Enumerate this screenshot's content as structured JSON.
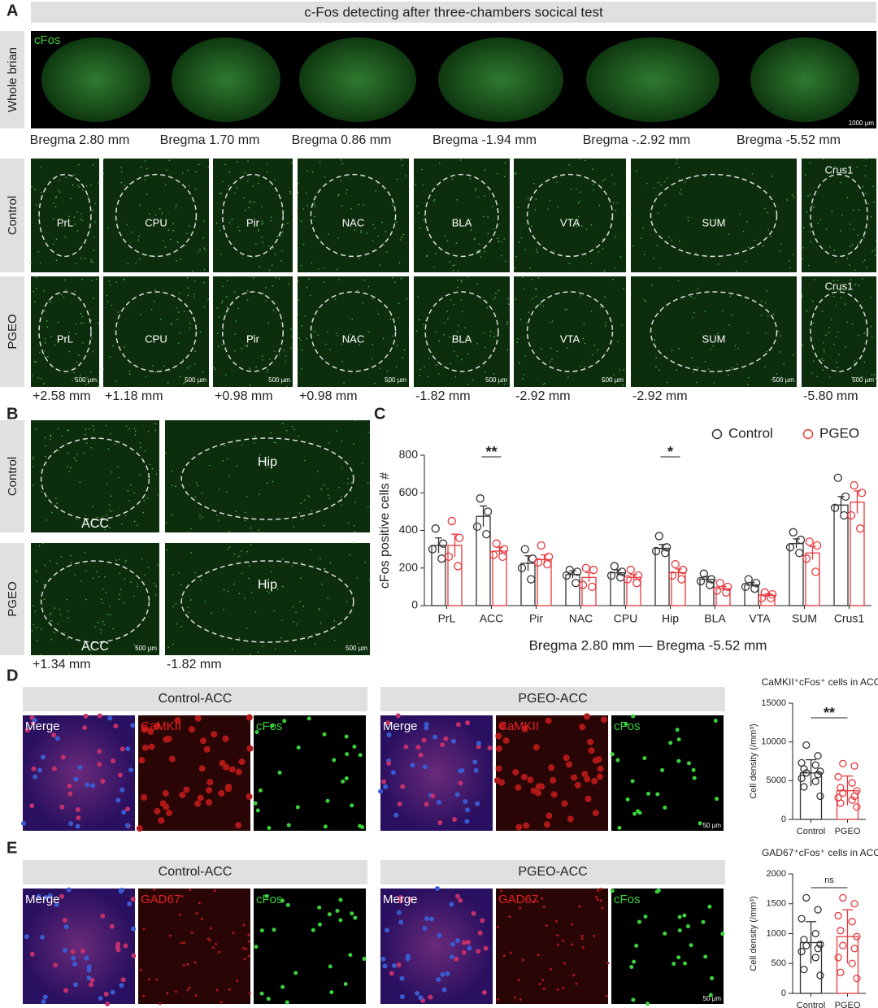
{
  "figure": {
    "panel_labels": [
      "A",
      "B",
      "C",
      "D",
      "E"
    ],
    "a": {
      "title": "c-Fos detecting after three-chambers socical test",
      "cfos_label": "cFos",
      "row_labels": [
        "Whole brian",
        "Control",
        "PGEO"
      ],
      "whole_bregma": [
        "Bregma 2.80 mm",
        "Bregma 1.70 mm",
        "Bregma 0.86 mm",
        "Bregma -1.94 mm",
        "Bregma -.2.92 mm",
        "Bregma -5.52 mm"
      ],
      "scale_large": "1000 µm",
      "regions": [
        "PrL",
        "CPU",
        "Pir",
        "NAC",
        "BLA",
        "VTA",
        "SUM",
        "Crus1"
      ],
      "coordinates": [
        "+2.58 mm",
        "+1.18 mm",
        "+0.98 mm",
        "+0.98 mm",
        "-1.82 mm",
        "-2.92 mm",
        "-2.92 mm",
        "-5.80 mm"
      ],
      "scale_small": "500 µm"
    },
    "b": {
      "row_labels": [
        "Control",
        "PGEO"
      ],
      "regions": [
        "ACC",
        "Hip"
      ],
      "coordinates": [
        "+1.34 mm",
        "-1.82 mm"
      ],
      "scale": "500 µm"
    },
    "d": {
      "headers": [
        "Control-ACC",
        "PGEO-ACC"
      ],
      "channels": [
        "Merge",
        "CaMKII",
        "cFos"
      ],
      "scale": "50 µm"
    },
    "e": {
      "headers": [
        "Control-ACC",
        "PGEO-ACC"
      ],
      "channels": [
        "Merge",
        "GAD67",
        "cFos"
      ],
      "scale": "50 µm"
    }
  },
  "chart_data": [
    {
      "type": "bar",
      "y_label": "cFos positive cells #",
      "x_label": "Bregma 2.80 mm — Bregma -5.52 mm",
      "categories": [
        "PrL",
        "ACC",
        "Pir",
        "NAC",
        "CPU",
        "Hip",
        "BLA",
        "VTA",
        "SUM",
        "Crus1"
      ],
      "series": [
        {
          "name": "Control",
          "color": "#333333",
          "values": [
            320,
            475,
            225,
            165,
            175,
            305,
            140,
            110,
            330,
            535
          ],
          "errors": [
            40,
            55,
            40,
            20,
            15,
            20,
            15,
            12,
            25,
            45
          ],
          "points": [
            [
              410,
              330,
              300,
              250
            ],
            [
              570,
              500,
              420,
              380
            ],
            [
              300,
              250,
              200,
              140
            ],
            [
              190,
              180,
              160,
              120
            ],
            [
              210,
              180,
              160,
              150
            ],
            [
              370,
              310,
              290,
              280
            ],
            [
              170,
              140,
              130,
              110
            ],
            [
              140,
              120,
              100,
              90
            ],
            [
              390,
              350,
              310,
              280
            ],
            [
              680,
              580,
              520,
              480
            ]
          ]
        },
        {
          "name": "PGEO",
          "color": "#e8383d",
          "values": [
            320,
            290,
            245,
            150,
            150,
            175,
            90,
            55,
            280,
            550
          ],
          "errors": [
            60,
            20,
            25,
            25,
            15,
            20,
            12,
            8,
            35,
            60
          ],
          "points": [
            [
              450,
              360,
              260,
              210
            ],
            [
              330,
              300,
              270,
              260
            ],
            [
              320,
              260,
              230,
              220
            ],
            [
              200,
              190,
              110,
              100
            ],
            [
              190,
              160,
              140,
              120
            ],
            [
              220,
              190,
              160,
              140
            ],
            [
              120,
              100,
              80,
              70
            ],
            [
              70,
              60,
              40,
              40
            ],
            [
              340,
              320,
              250,
              180
            ],
            [
              640,
              600,
              480,
              410
            ]
          ]
        }
      ],
      "ylim": [
        0,
        800
      ],
      "yticks": [
        0,
        200,
        400,
        600,
        800
      ],
      "legend": "top-right",
      "significance": [
        {
          "text": "**",
          "category": "ACC"
        },
        {
          "text": "*",
          "category": "Hip"
        }
      ]
    },
    {
      "type": "bar",
      "title": "CaMKII⁺cFos⁺ cells in ACC",
      "y_label": "Cell density (/mm³)",
      "categories": [
        "Control",
        "PGEO"
      ],
      "colors": [
        "#333333",
        "#e8383d"
      ],
      "values": [
        6000,
        3700
      ],
      "errors": [
        1700,
        1900
      ],
      "points": [
        [
          9600,
          8200,
          7300,
          7000,
          6500,
          6200,
          6000,
          5800,
          5300,
          4900,
          4200,
          3000
        ],
        [
          7200,
          6900,
          5500,
          4700,
          4100,
          3700,
          3400,
          3000,
          2800,
          2500,
          2100,
          1600
        ]
      ],
      "ylim": [
        0,
        15000
      ],
      "yticks": [
        0,
        5000,
        10000,
        15000
      ],
      "significance": [
        {
          "text": "**"
        }
      ]
    },
    {
      "type": "bar",
      "title": "GAD67⁺cFos⁺ cells in ACC",
      "y_label": "Cell density (/mm³)",
      "categories": [
        "Control",
        "PGEO"
      ],
      "colors": [
        "#333333",
        "#e8383d"
      ],
      "values": [
        850,
        950
      ],
      "errors": [
        350,
        450
      ],
      "points": [
        [
          1600,
          1400,
          1250,
          1000,
          900,
          820,
          800,
          750,
          700,
          600,
          400,
          300
        ],
        [
          1600,
          1500,
          1300,
          1200,
          1050,
          950,
          800,
          750,
          600,
          500,
          350,
          250
        ]
      ],
      "ylim": [
        0,
        2000
      ],
      "yticks": [
        0,
        500,
        1000,
        1500,
        2000
      ],
      "significance": [
        {
          "text": "ns"
        }
      ]
    }
  ]
}
